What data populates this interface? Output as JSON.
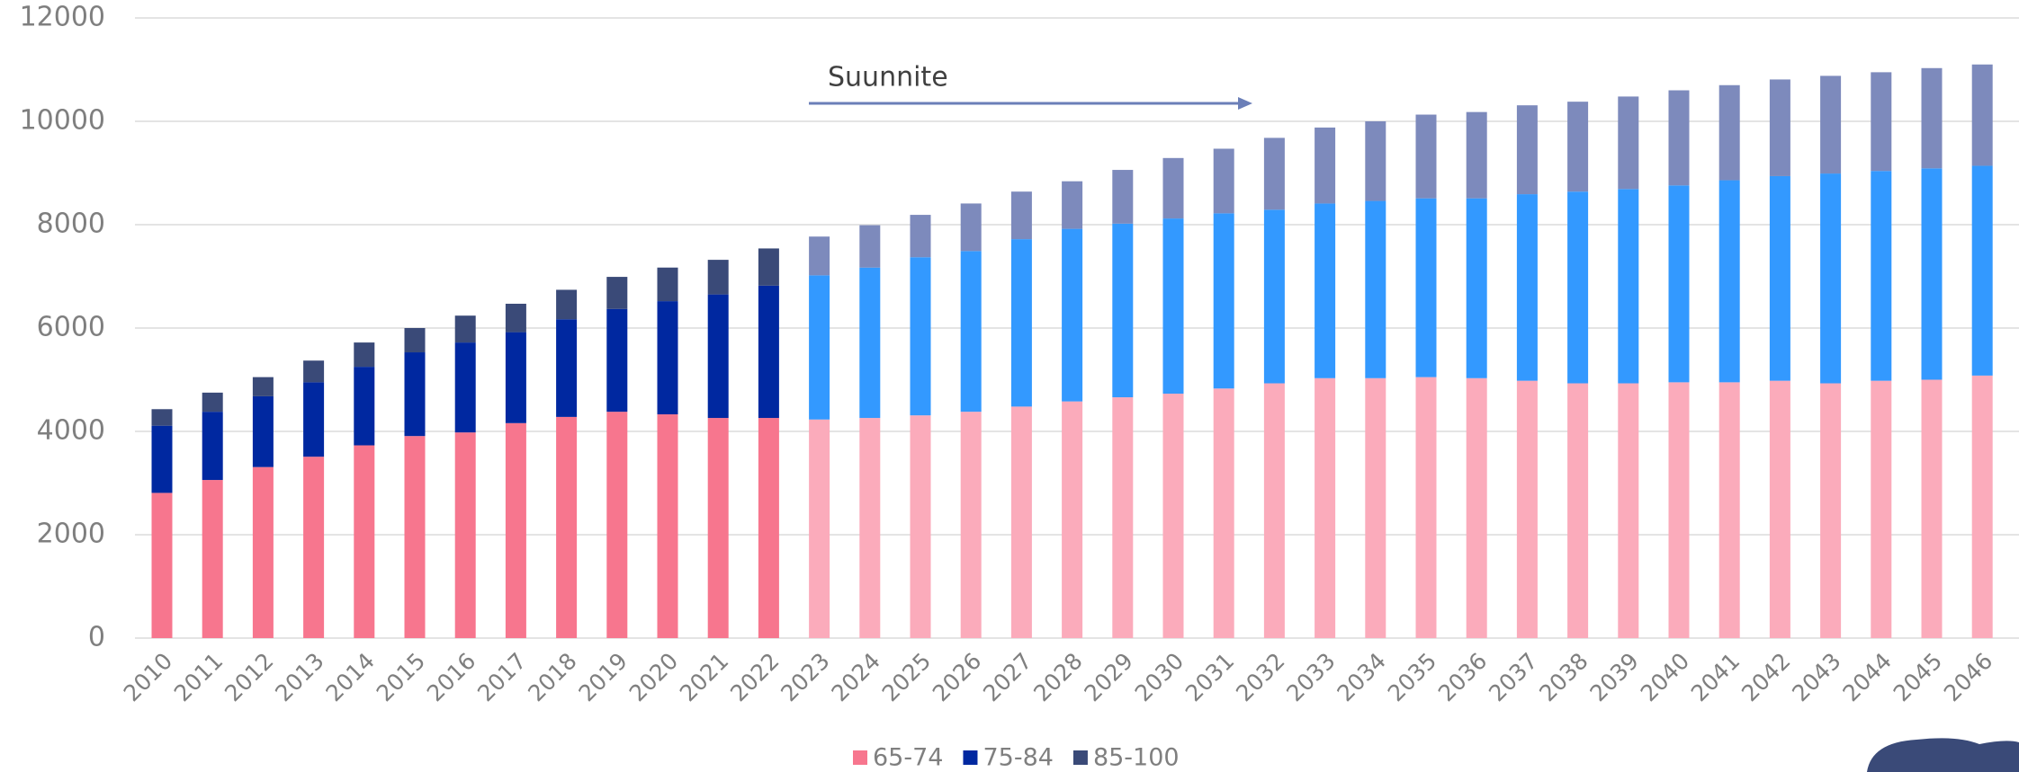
{
  "chart_data": {
    "type": "stacked_bar",
    "categories": [
      "2010",
      "2011",
      "2012",
      "2013",
      "2014",
      "2015",
      "2016",
      "2017",
      "2018",
      "2019",
      "2020",
      "2021",
      "2022",
      "2023",
      "2024",
      "2025",
      "2026",
      "2027",
      "2028",
      "2029",
      "2030",
      "2031",
      "2032",
      "2033",
      "2034",
      "2035",
      "2036",
      "2037",
      "2038",
      "2039",
      "2040",
      "2041",
      "2042",
      "2043",
      "2044",
      "2045",
      "2046"
    ],
    "forecast_start": "2023",
    "annotation": "Suunnite",
    "series": [
      {
        "name": "65-74",
        "color": "#f7768e",
        "forecast_color": "#fbabbb",
        "values": [
          2810,
          3060,
          3310,
          3510,
          3730,
          3910,
          3980,
          4160,
          4280,
          4380,
          4330,
          4260,
          4260,
          4230,
          4260,
          4310,
          4380,
          4480,
          4580,
          4660,
          4730,
          4830,
          4930,
          5030,
          5030,
          5050,
          5030,
          4980,
          4930,
          4930,
          4950,
          4950,
          4980,
          4930,
          4980,
          5000,
          5080
        ]
      },
      {
        "name": "75-84",
        "color": "#0028a0",
        "forecast_color": "#3399ff",
        "values": [
          1300,
          1320,
          1370,
          1440,
          1520,
          1620,
          1740,
          1760,
          1890,
          1990,
          2190,
          2390,
          2560,
          2790,
          2910,
          3060,
          3110,
          3240,
          3340,
          3360,
          3390,
          3390,
          3360,
          3380,
          3430,
          3460,
          3480,
          3610,
          3710,
          3760,
          3810,
          3910,
          3960,
          4060,
          4060,
          4090,
          4060
        ]
      },
      {
        "name": "85-100",
        "color": "#3a4a78",
        "forecast_color": "#7d8abc",
        "values": [
          320,
          370,
          370,
          420,
          470,
          470,
          520,
          550,
          570,
          620,
          650,
          670,
          720,
          750,
          820,
          820,
          920,
          920,
          920,
          1040,
          1170,
          1250,
          1390,
          1470,
          1540,
          1620,
          1670,
          1720,
          1740,
          1790,
          1840,
          1840,
          1870,
          1890,
          1910,
          1940,
          1960
        ]
      }
    ],
    "ylim": [
      0,
      12000
    ],
    "yticks": [
      0,
      2000,
      4000,
      6000,
      8000,
      10000,
      12000
    ],
    "grid": true,
    "legend": "bottom"
  }
}
